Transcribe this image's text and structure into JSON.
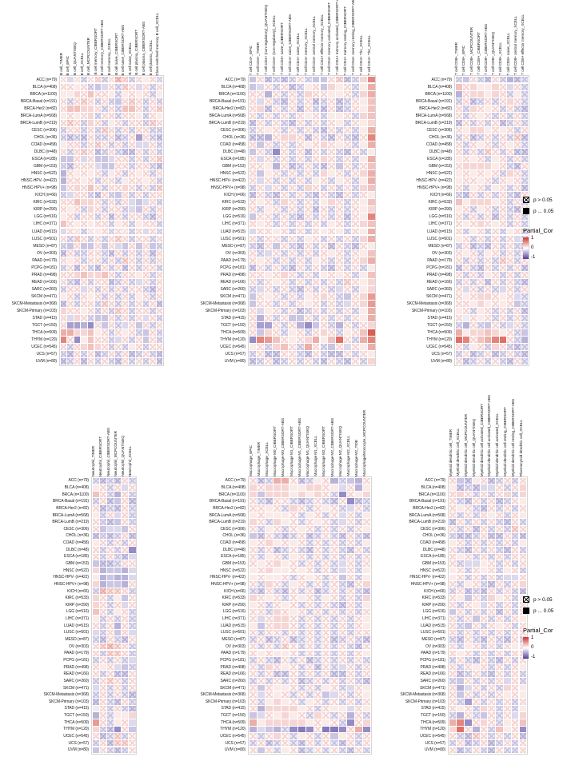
{
  "legend": {
    "p_gt": "p > 0.05",
    "p_le": "p ... 0.05",
    "cor_title": "Partial_Cor",
    "tick_max": "1",
    "tick_mid": "0",
    "tick_min": "-1"
  },
  "colors": {
    "positive_max": "#d03426",
    "negative_max": "#4f3f9e",
    "zero": "#ffffff",
    "grid_border": "#d6d6d6"
  },
  "chart_data": {
    "type": "heatmap",
    "description": "Six partial-correlation heatmaps of immune cell infiltration estimates across TCGA cancer types; crossed cells are non-significant (p > 0.05).",
    "colorbar": {
      "title": "Partial_Cor",
      "min": -1,
      "max": 1
    },
    "significance": {
      "crossed_box": "p > 0.05",
      "filled_box": "p ... 0.05"
    },
    "value_encoding": "one char per cell; lowercase a..u maps to -1.0..+1.0 in 0.1 steps (k = 0); uppercase letter = same value but p > 0.05 (crossed cell)",
    "row_labels": [
      "ACC (n=79)",
      "BLCA (n=408)",
      "BRCA (n=1100)",
      "BRCA-Basal (n=191)",
      "BRCA-Her2 (n=82)",
      "BRCA-LumA (n=568)",
      "BRCA-LumB (n=219)",
      "CESC (n=306)",
      "CHOL (n=36)",
      "COAD (n=458)",
      "DLBC (n=48)",
      "ESCA (n=185)",
      "GBM (n=153)",
      "HNSC (n=522)",
      "HNSC-HPV- (n=422)",
      "HNSC-HPV+ (n=98)",
      "KICH (n=66)",
      "KIRC (n=533)",
      "KIRP (n=290)",
      "LGG (n=516)",
      "LIHC (n=371)",
      "LUAD (n=515)",
      "LUSC (n=501)",
      "MESO (n=87)",
      "OV (n=303)",
      "PAAD (n=179)",
      "PCPG (n=181)",
      "PRAD (n=498)",
      "READ (n=166)",
      "SARC (n=260)",
      "SKCM (n=471)",
      "SKCM-Metastasis (n=368)",
      "SKCM-Primary (n=103)",
      "STAD (n=415)",
      "TGCT (n=150)",
      "THCA (n=509)",
      "THYM (n=120)",
      "UCEC (n=545)",
      "UCS (n=57)",
      "UVM (n=80)"
    ],
    "panels": [
      {
        "id": "b-cell",
        "columns": [
          "B cell_TIMER",
          "B cell_EPIC",
          "B cell_QUANTISEQ",
          "B cell_XCELL",
          "B cell_MCPCOUNTER",
          "B cell memory_CIBERSORT",
          "B cell memory_CIBERSORT-ABS",
          "B cell memory_XCELL",
          "B cell naive_CIBERSORT",
          "B cell naive_CIBERSORT-ABS",
          "B cell naive_XCELL",
          "B cell plasma_CIBERSORT",
          "B cell plasma_CIBERSORT-ABS",
          "B cell plasma_XCELL",
          "Class-switched memory B cell_XCELL"
        ],
        "values": [
          "KiKJKLJKMLJKlKJ",
          "KKlKJhiKJLKiKJK",
          "llmKnKKlJlKlKJl",
          "KJKLKJKJhKLKJKJ",
          "KnnmmKJKJnnKJKL",
          "lKlKmJKKJKKlJKl",
          "KLKJmKJlKJKKJLK",
          "JKKJKJLKJKJKKJJ",
          "JIJIKJJKIJKfKJI",
          "lKKJKLKJKJKiiKJ",
          "KJKLKIJKJIIKJKJ",
          "hhKiKhhiKKJKJKL",
          "JIKKKihhKKJKKJI",
          "gKlKlKJlKJKlKJK",
          "gKKlKJKKJlKKlKJ",
          "hKmKnKJKKmKJKJL",
          "JiKKJIKJhKJKJKK",
          "KKnmmKJKJKihiKJ",
          "KlKJmKJKKJihKJK",
          "lKJKKJKIKJKKJIK",
          "nKlKlKKJlKJlKKJ",
          "iKKJKlKJKKJKiKJ",
          "KJLKJKJKLKJKKJK",
          "JhKhhKhKihKhKhJ",
          "IKJJKKJIKJKJKIK",
          "KlKJKKJKJLKJKJK",
          "JKIKJIKJKIKJKKJ",
          "KKmnmmnKJKKlKJK",
          "KJIKJKKIJKJiKJK",
          "JKKiKJKJKJKKJIK",
          "lKJKlKJKJKJlKJK",
          "IKJKKJLKJKJKJKI",
          "mKKlKJKJLKJKKJK",
          "KimKJhhKJKJKiKJ",
          "KffgeKhKJiKhKJK",
          "oommnlKJKlKJhKJ",
          "qKelnKKJiKJKhKJ",
          "KJKmnmKJKJlKJKK",
          "JIKJKIJKJKIJKJI",
          "IJKIKJKJIKJKJKI"
        ]
      },
      {
        "id": "t-cd4",
        "columns": [
          "T cell CD4+_EPIC",
          "T cell CD4+_TIMER",
          "T cell CD4+ (non-regulatory)_QUANTISEQ",
          "T cell CD4+ (non-regulatory)_XCELL",
          "T cell CD4+ naive_CIBERSORT",
          "T cell CD4+ naive_CIBERSORT-ABS",
          "T cell CD4+ naive_XCELL",
          "T cell CD4+ memory_XCELL",
          "T cell CD4+ central memory_XCELL",
          "T cell CD4+ effector memory_XCELL",
          "T cell CD4+ memory activated_CIBERSORT",
          "T cell CD4+ memory activated_CIBERSORT-ABS",
          "T cell CD4+ memory resting_CIBERSORT",
          "T cell CD4+ memory resting_CIBERSORT-ABS",
          "T cell CD4+ Th1_XCELL",
          "T cell CD4+ Th2_XCELL"
        ],
        "values": [
          "hKIJIJKJhhKLIJmq",
          "hiKJKIJlKhmlKJlo",
          "KKgKJKJmKKllKJmo",
          "KiKJIKJKIJKIJKln",
          "KmIKJKIKJIKIJKln",
          "KJKJKJKlKJllKJmn",
          "IKJKJIKJKJKlJKlm",
          "JKlKJKJKJIKJKJlo",
          "IIgKmmKIKJIKJIKq",
          "KhKJKJKlKmKlKJlo",
          "hKJeKJKIKJKJIKJl",
          "KiKJKJKJKmKJKJlo",
          "KKlgKIJKJIKhKJKn",
          "KhlKJKJKJmlKJKmo",
          "KiKJKJKJlKJlKJlo",
          "JKiKJKJmKJKJKJmn",
          "IKJIKJKJIKJIKJKl",
          "KlKJmKJKJlmKJKln",
          "KJlKJKJKIKJKJKlm",
          "hKKJKJIKJKJKIKlq",
          "KlKJKJKJKJlKJKmn",
          "iKKlKJKJKlKlJKlo",
          "KJKKJKJlKJKJKJmo",
          "JIKhKJIKJKIKJIKl",
          "KJiKJKJKJKlKJKln",
          "KlKJKJKJlKJKJKmo",
          "IKJKJIKJKJIKJKJl",
          "KKlKmKJKJlKlKJln",
          "KJKlKJKJKJKJLKlm",
          "JiKJKJIKJKJiKJlm",
          "hKlKJKJlKmKJhKmp",
          "hKKJKJKlKJKJiKmp",
          "KilKJKIJKJKJKJlo",
          "KgKJKhhKJKJKJKlo",
          "KffKJKgehKJgKJKm",
          "KhmKJlKJKmKJlKns",
          "eqpnKlKmolnrKJoq",
          "lKJmnKJoKJhKiKlo",
          "JKIIKKJIKJIIKJKl",
          "IJKIJKJKJIKJIKJm"
        ]
      },
      {
        "id": "t-cd8",
        "columns": [
          "T cell CD8+_TIMER",
          "T cell CD8+_EPIC",
          "T cell CD8+_MCPCOUNTER",
          "T cell CD8+_CIBERSORT",
          "T cell CD8+_CIBERSORT-ABS",
          "T cell CD8+_QUANTISEQ",
          "T cell CD8+_XCELL",
          "T cell CD8+ naive_XCELL",
          "T cell CD8+ central memory_XCELL",
          "T cell CD8+ effector memory_XCELL"
        ],
        "values": [
          "JhKJIKJgIJ",
          "nKmllmKiKJ",
          "gKmmlmKJlJ",
          "JKIJKJKmKJ",
          "KJmKlKJKJI",
          "KJKlKJKJKJ",
          "IKJKJKIJKJ",
          "KlmmlKlKJK",
          "JKIJKJKJLI",
          "KJKlKJKlKJ",
          "KJKJLKJKII",
          "lKlKJlKJKJ",
          "KmmmmlKJIK",
          "lKlKlKJmKJ",
          "lKKlKJKlKJ",
          "KJlKJlKJKI",
          "JIKJKJKJIK",
          "nlmmmlKJKJ",
          "lKJlKJKJIK",
          "KJKJKIKJKJ",
          "KlKmKlKJKJ",
          "KJlKJKJlKJ",
          "lKJKJKJKiJ",
          "JKIJIKJKJI",
          "KlKJlKJKJK",
          "KJKJKJLKJK",
          "IKJIKJKJKI",
          "KJKJlKJKJK",
          "JKJKIKJKJI",
          "KiKJKJiKJK",
          "KlKmmKlKiJ",
          "KKlmlKlKhJ",
          "lKJlKJKJKI",
          "KjKlKJKJKJ",
          "JgKJhKJiKJ",
          "olmmnmlKJh",
          "rqKnoqrKJg",
          "KJlKJmKJIJ",
          "JKIJKIJKJI",
          "KIJKJKJIKJ"
        ]
      },
      {
        "id": "neutrophil",
        "columns": [
          "Neutrophil_TIMER",
          "Neutrophil_CIBERSORT",
          "Neutrophil_CIBERSORT-ABS",
          "Neutrophil_MCPCOUNTER",
          "Neutrophil_QUANTISEQ",
          "Neutrophil_XCELL"
        ],
        "values": [
          "JIJIKJ",
          "lKJKiK",
          "nKJgKJ",
          "JKIhKI",
          "KIJIKJ",
          "lJKiKJ",
          "KJIhKJ",
          "KhiihK",
          "IJIJKI",
          "lKJKJK",
          "KJKJKe",
          "KJKJIi",
          "hIIJKK",
          "mghhgi",
          "lghggi",
          "mghhgK",
          "JMLLKJ",
          "mKJlhK",
          "mKJKiK",
          "nKJlKJ",
          "lJKJKJ",
          "KJKgKJ",
          "iJKhKi",
          "JIKJIK",
          "KLMLKJ",
          "KJLLKJ",
          "JKJKJi",
          "KlKihJ",
          "KJKIIK",
          "JKLKJK",
          "iKJKJK",
          "JKJKJI",
          "IKJIKJ",
          "jKJKJI",
          "gKJllm",
          "pKJlKi",
          "mJIeKh",
          "KIJLJK",
          "JKILLK",
          "hKJIJK"
        ]
      },
      {
        "id": "macrophage",
        "columns": [
          "Macrophage_EPIC",
          "Macrophage_TIMER",
          "Macrophage_XCELL",
          "Macrophage M0_CIBERSORT",
          "Macrophage M0_CIBERSORT-ABS",
          "Macrophage M1_CIBERSORT",
          "Macrophage M1_CIBERSORT-ABS",
          "Macrophage M1_QUANTISEQ",
          "Macrophage M1_XCELL",
          "Macrophage M2_CIBERSORT",
          "Macrophage M2_CIBERSORT-ABS",
          "Macrophage M2_QUANTISEQ",
          "Macrophage M2_XCELL",
          "Macrophage M2_TIDE",
          "Macrophage/Monocyte_MCPCOUNTER"
        ],
        "values": [
          "KIJooKIJlKgJhgK",
          "mKmmmllmmKliKgl",
          "mhmmmlmlmKJeKlm",
          "KJIKKJIJKJIKeIJ",
          "KKlKJmKJKlKJiKJ",
          "lKlllKJlKJKiKJl",
          "mKJmlKJKlKJiKJK",
          "KJlKJKlKJKJKJKl",
          "hIKJIJKIJKJIKJI",
          "lKmlKlKJKJKJKJl",
          "KJKIJKJIKJKJIKJ",
          "KJlKJlKJKJKJKJK",
          "KlKmlKJKJKJiKJK",
          "lKmllKlKJKJiKJl",
          "lKllKJKlKJKhKJl",
          "KJmKJlKJKJKJIKm",
          "JIKJIKJKIJKJKJI",
          "mKlKJKlKJlKJKJm",
          "lKJKlKJKJKJIKJl",
          "KKJmKlKJKJKJKJK",
          "KiKmmKJKJKJKJKl",
          "lhKmmKJKJKJKJKl",
          "KJKKJKJKJKJKJKK",
          "JKIJKIJKJKIJKJI",
          "KJKJLKJKJKJKJIK",
          "KlKllKJKJKJKJKl",
          "JKJIKJKIJKJKJKJ",
          "KJmKlKJKIKJiKJK",
          "KJKIIKJKJKIIKJK",
          "JKJKJKIJKJKJKJI",
          "KhKllKJKJlKJiKl",
          "KiKlKJKJKhiKJKl",
          "KJlmlKJlKJKJKJK",
          "KgmmmmlKJKlliKl",
          "hiKlmlKJmKJKgKJ",
          "olmmmmmlKlKJeKm",
          "gihgJedeKddeKoe",
          "KJKmKJlKJKhlKJK",
          "JKIJKJIKJKJIKJK",
          "KhKJlKIJKJKJIKJ"
        ]
      },
      {
        "id": "myeloid-dc",
        "columns": [
          "Myeloid dendritic cell_TIMER",
          "Myeloid dendritic cell_XCELL",
          "Myeloid dendritic cell_MCPCOUNTER",
          "Myeloid dendritic cell_QUANTISEQ",
          "Myeloid dendritic cell activated_CIBERSORT",
          "Myeloid dendritic cell activated_CIBERSORT-ABS",
          "Myeloid dendritic cell activated_XCELL",
          "Myeloid dendritic cell resting_CIBERSORT",
          "Myeloid dendritic cell resting_CIBERSORT-ABS",
          "Plasmacytoid dendritic cell_XCELL"
        ],
        "values": [
          "KhIlKIJKJK",
          "lIJIiiKJKm",
          "KmKJKJKmJm",
          "KJIKJKIJKl",
          "KlKJIKJKJK",
          "KJKJKlKJKl",
          "IKJKJKJIKJ",
          "KJKIKJKJLK",
          "JIIJKIIKJI",
          "lKJKJKJKJl",
          "KJIKJKJIKJ",
          "KlKJKJKJKK",
          "KJiilKJKJK",
          "lKJKlKJlKJ",
          "lKJKJKJiiK",
          "KJlKJIKJKm",
          "JKIJIKJKJI",
          "KlhKJmlKJl",
          "KJKliKJKJK",
          "hKJKJKIKJK",
          "KJKhKJKJKl",
          "KJhKJKlKJK",
          "KJKJKJKJKK",
          "JIKJIKJIKJ",
          "KJlKJKJKlK",
          "KlKJKJKJKK",
          "JKJIKJIKJK",
          "KJKlKJKJKl",
          "KIJKJIKJKJ",
          "JhKJKJKiKJ",
          "KgiKJKJmKl",
          "KhKJKJKlKl",
          "KJfKJKJKJK",
          "KlKJmKJKJl",
          "JgKJhKJKim",
          "oqeKmKJlKn",
          "mrKgKJnlKe",
          "KJILKJKJKI",
          "JKIJKIJKJK",
          "KIJKJIKJJK"
        ]
      }
    ]
  }
}
